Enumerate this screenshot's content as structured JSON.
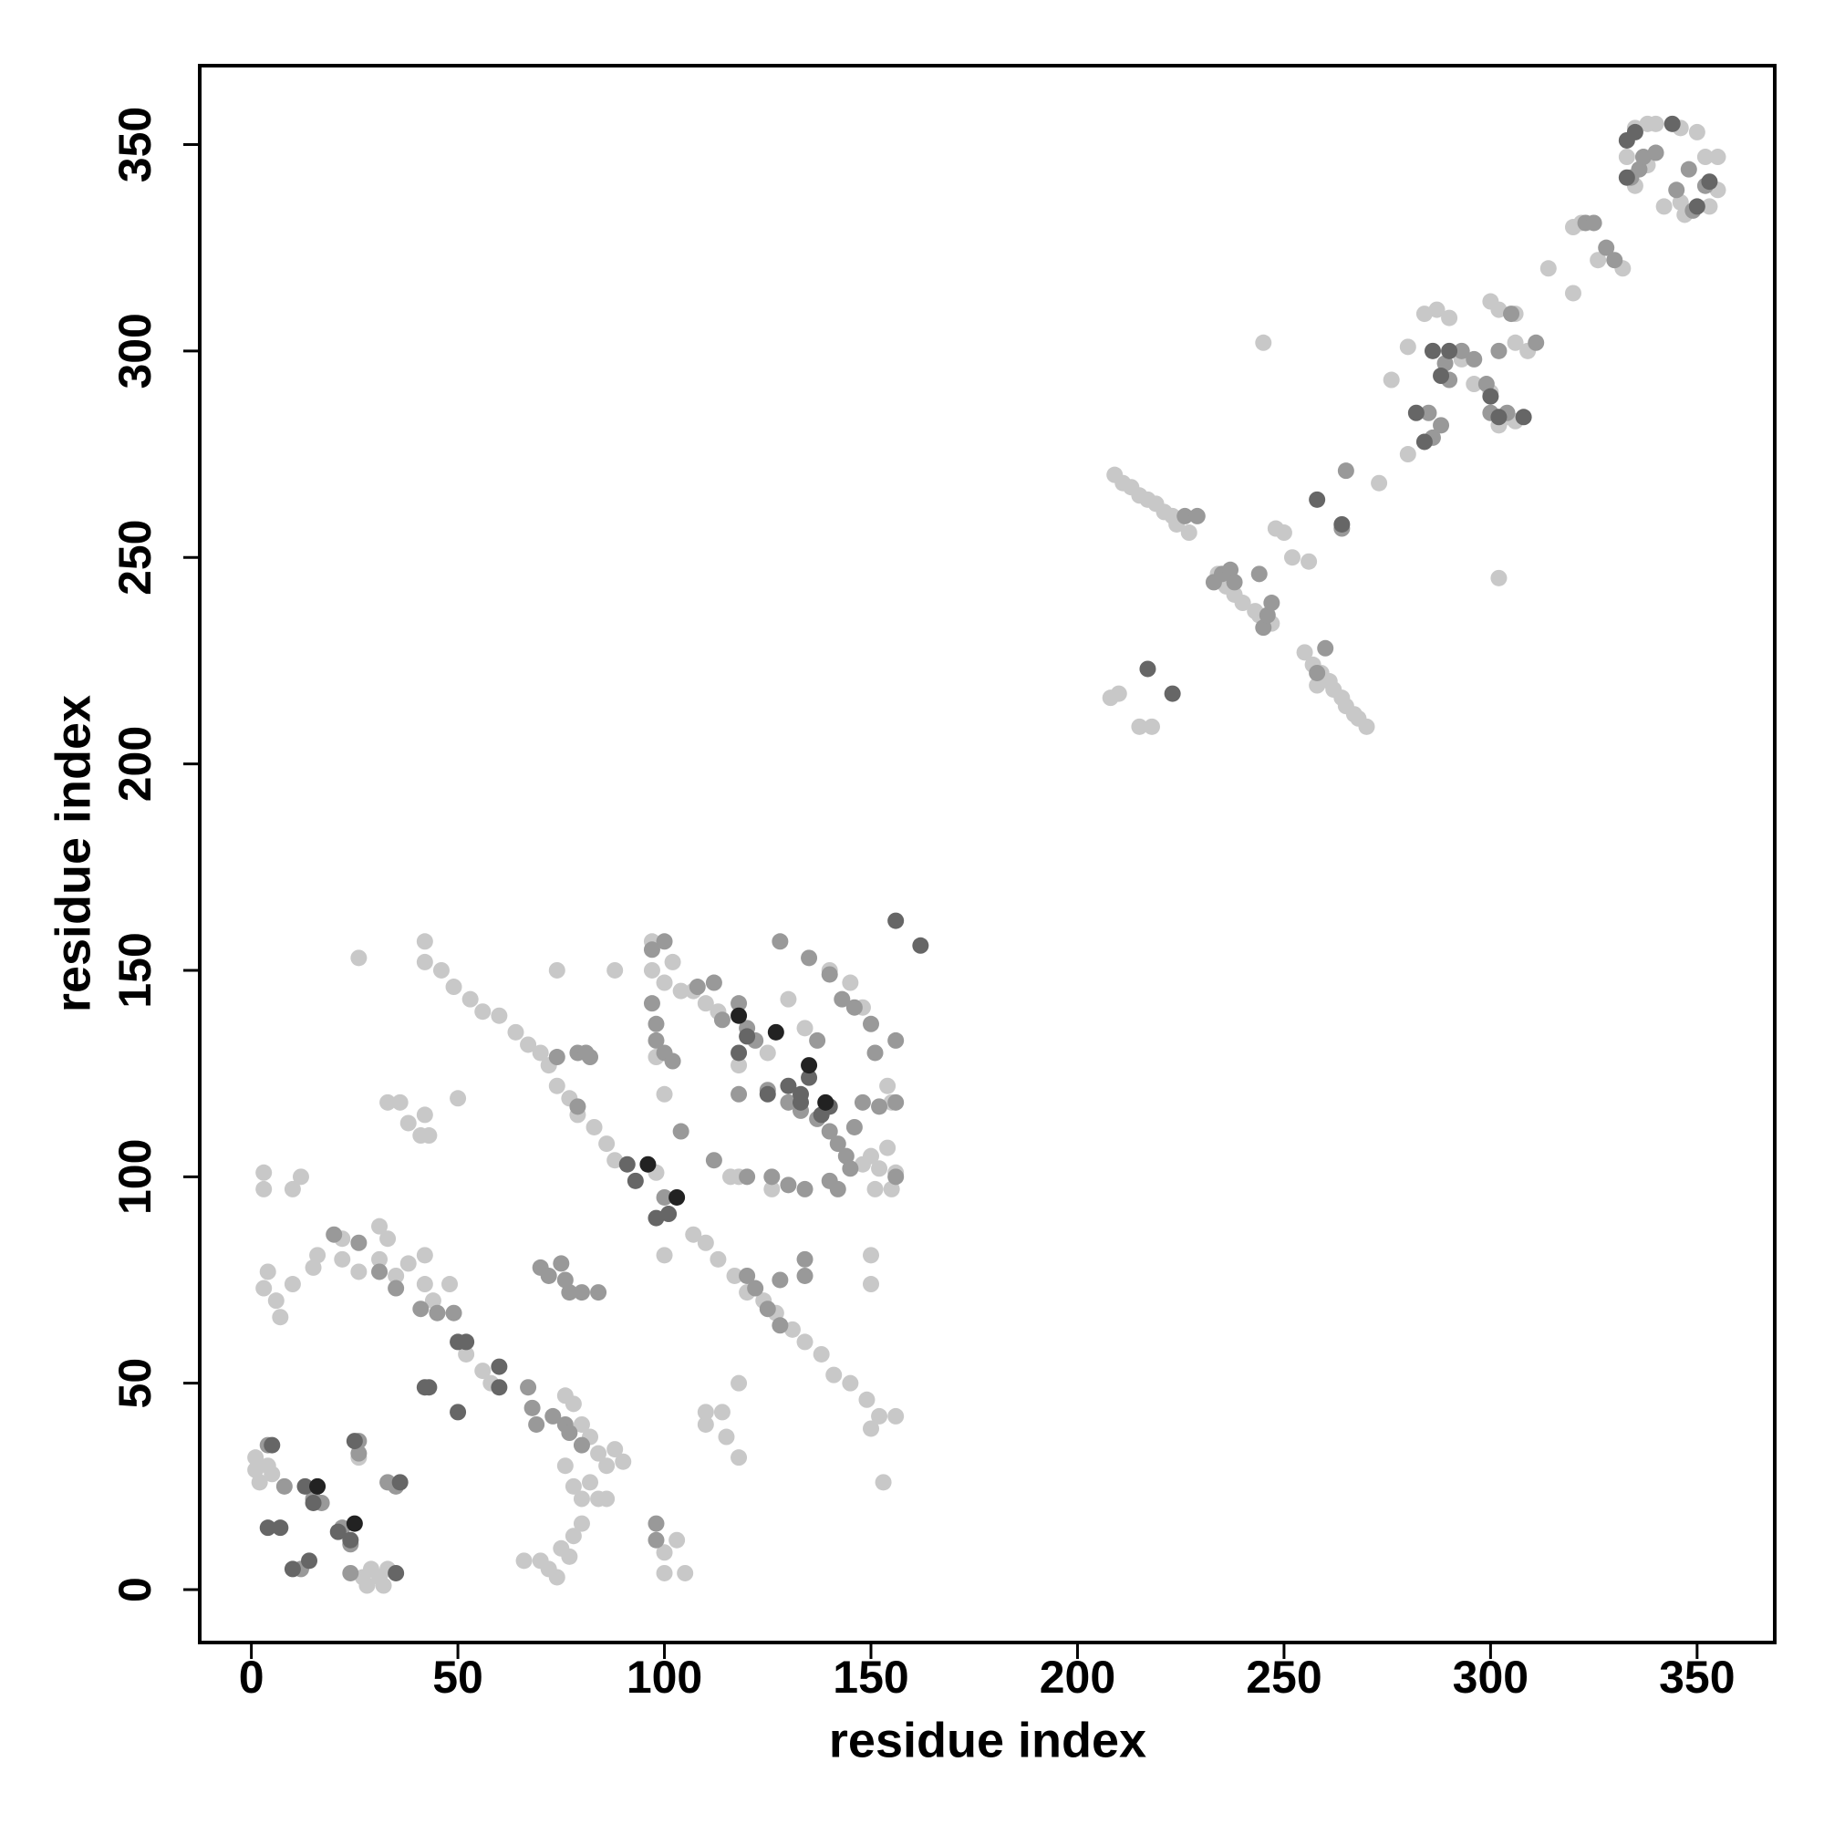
{
  "chart_data": {
    "type": "scatter",
    "xlabel": "residue index",
    "ylabel": "residue index",
    "xlim": [
      -12.5,
      368.8
    ],
    "ylim": [
      -12.8,
      369.1
    ],
    "xticks": [
      0,
      50,
      100,
      150,
      200,
      250,
      300,
      350
    ],
    "yticks": [
      0,
      50,
      100,
      150,
      200,
      250,
      300,
      350
    ],
    "grid": false,
    "series": [
      {
        "color": "#c8c8c8",
        "x": [
          42,
          42,
          46,
          49,
          53,
          56,
          60,
          64,
          67,
          70,
          72,
          74,
          77,
          79,
          83,
          86,
          88,
          107,
          110,
          113,
          117,
          120,
          124,
          127,
          131,
          134,
          138,
          141,
          145,
          149,
          152,
          156,
          3,
          3,
          12,
          10,
          4,
          3,
          6,
          7,
          10,
          15,
          16,
          22,
          22,
          26,
          31,
          33,
          31,
          35,
          38,
          42,
          42,
          44,
          48,
          52,
          56,
          58,
          1,
          1,
          2,
          4,
          5,
          26,
          27,
          29,
          31,
          33,
          28,
          32,
          66,
          70,
          72,
          74,
          75,
          77,
          78,
          76,
          78,
          80,
          82,
          84,
          86,
          88,
          90,
          76,
          78,
          80,
          82,
          84,
          86,
          80,
          100,
          100,
          103,
          105,
          88,
          74,
          26,
          33,
          36,
          38,
          41,
          43,
          42,
          50,
          110,
          110,
          114,
          115,
          118,
          118,
          150,
          150,
          150,
          153,
          97,
          97,
          100,
          102,
          104,
          107,
          110,
          113,
          118,
          125,
          130,
          134,
          140,
          145,
          148,
          150,
          152,
          154,
          156,
          155,
          151,
          148,
          154,
          155,
          98,
          100,
          118,
          126,
          98,
          100,
          116,
          209,
          211,
          213,
          215,
          217,
          219,
          221,
          223,
          224,
          227,
          208,
          210,
          215,
          218,
          255,
          257,
          259,
          261,
          262,
          264,
          265,
          267,
          268,
          270,
          258,
          234,
          236,
          238,
          240,
          244,
          247,
          248,
          250,
          252,
          256,
          243,
          245,
          302,
          273,
          280,
          276,
          280,
          284,
          287,
          290,
          293,
          296,
          300,
          302,
          304,
          306,
          302,
          306,
          300,
          306,
          309,
          314,
          320,
          320,
          322,
          326,
          332,
          333,
          335,
          338,
          340,
          346,
          350,
          352,
          355,
          355,
          353,
          347,
          346,
          342,
          338,
          335
        ],
        "values": [
          157,
          152,
          150,
          146,
          143,
          140,
          139,
          135,
          132,
          130,
          127,
          122,
          119,
          115,
          112,
          108,
          104,
          86,
          84,
          80,
          76,
          72,
          70,
          67,
          63,
          60,
          57,
          52,
          50,
          46,
          42,
          42,
          101,
          97,
          100,
          97,
          77,
          73,
          70,
          66,
          74,
          78,
          81,
          85,
          80,
          77,
          88,
          85,
          80,
          76,
          79,
          81,
          74,
          70,
          74,
          57,
          53,
          50,
          32,
          29,
          26,
          30,
          28,
          32,
          3,
          5,
          3,
          5,
          1,
          1,
          7,
          7,
          5,
          3,
          10,
          8,
          13,
          47,
          45,
          40,
          37,
          33,
          30,
          34,
          31,
          30,
          25,
          22,
          26,
          22,
          22,
          16,
          4,
          9,
          12,
          4,
          150,
          150,
          153,
          118,
          118,
          113,
          110,
          110,
          115,
          119,
          40,
          43,
          43,
          37,
          32,
          50,
          81,
          74,
          39,
          26,
          157,
          150,
          147,
          152,
          145,
          145,
          142,
          140,
          127,
          130,
          143,
          136,
          150,
          147,
          141,
          105,
          102,
          107,
          101,
          97,
          97,
          103,
          122,
          118,
          129,
          120,
          100,
          97,
          101,
          81,
          100,
          270,
          268,
          267,
          265,
          264,
          263,
          261,
          260,
          258,
          256,
          216,
          217,
          209,
          209,
          227,
          224,
          222,
          220,
          218,
          216,
          214,
          212,
          211,
          209,
          219,
          246,
          243,
          241,
          239,
          236,
          234,
          257,
          256,
          250,
          249,
          237,
          302,
          245,
          268,
          275,
          293,
          301,
          309,
          310,
          308,
          298,
          292,
          290,
          282,
          284,
          283,
          310,
          309,
          312,
          302,
          300,
          320,
          314,
          330,
          331,
          322,
          320,
          347,
          354,
          355,
          355,
          354,
          353,
          347,
          347,
          339,
          335,
          333,
          336,
          335,
          345,
          340
        ]
      },
      {
        "color": "#999999",
        "x": [
          74,
          79,
          81,
          82,
          79,
          75,
          77,
          80,
          84,
          70,
          72,
          76,
          20,
          26,
          31,
          35,
          41,
          45,
          49,
          67,
          68,
          69,
          73,
          76,
          77,
          80,
          26,
          26,
          33,
          35,
          4,
          8,
          15,
          17,
          22,
          24,
          24,
          12,
          97,
          98,
          98,
          100,
          102,
          97,
          100,
          108,
          112,
          118,
          114,
          120,
          122,
          118,
          125,
          130,
          133,
          137,
          140,
          142,
          144,
          145,
          142,
          134,
          130,
          126,
          120,
          112,
          104,
          128,
          135,
          137,
          140,
          143,
          146,
          150,
          151,
          156,
          156,
          152,
          148,
          146,
          140,
          156,
          98,
          98,
          128,
          134,
          134,
          128,
          125,
          120,
          122,
          100,
          226,
          229,
          233,
          235,
          237,
          238,
          244,
          245,
          246,
          247,
          260,
          258,
          264,
          265,
          285,
          286,
          288,
          289,
          290,
          293,
          296,
          299,
          300,
          304,
          302,
          305,
          311,
          323,
          325,
          328,
          330,
          334,
          336,
          337,
          340,
          345,
          348,
          352,
          349
        ],
        "values": [
          129,
          130,
          130,
          129,
          117,
          79,
          72,
          72,
          72,
          78,
          76,
          75,
          86,
          84,
          77,
          73,
          68,
          67,
          67,
          49,
          44,
          40,
          42,
          40,
          38,
          35,
          36,
          33,
          26,
          25,
          35,
          25,
          22,
          21,
          15,
          11,
          4,
          5,
          142,
          137,
          133,
          130,
          128,
          155,
          157,
          146,
          147,
          142,
          138,
          136,
          133,
          120,
          121,
          118,
          116,
          114,
          111,
          108,
          105,
          102,
          97,
          97,
          98,
          100,
          100,
          104,
          111,
          157,
          153,
          133,
          149,
          143,
          141,
          137,
          130,
          133,
          118,
          117,
          118,
          112,
          99,
          100,
          16,
          12,
          75,
          80,
          76,
          64,
          68,
          76,
          73,
          95,
          260,
          260,
          244,
          246,
          247,
          244,
          246,
          233,
          236,
          239,
          228,
          222,
          257,
          271,
          285,
          279,
          282,
          297,
          293,
          300,
          298,
          292,
          285,
          285,
          300,
          309,
          302,
          331,
          331,
          325,
          322,
          342,
          344,
          347,
          348,
          339,
          344,
          340,
          334
        ]
      },
      {
        "color": "#666666",
        "x": [
          5,
          4,
          7,
          10,
          13,
          14,
          15,
          21,
          24,
          25,
          35,
          36,
          42,
          43,
          50,
          52,
          50,
          60,
          60,
          91,
          93,
          101,
          98,
          118,
          120,
          125,
          130,
          133,
          135,
          133,
          138,
          140,
          156,
          162,
          217,
          223,
          264,
          258,
          282,
          284,
          286,
          288,
          290,
          302,
          308,
          333,
          333,
          335,
          350,
          353,
          344,
          300
        ],
        "values": [
          35,
          15,
          15,
          5,
          25,
          7,
          21,
          14,
          12,
          36,
          4,
          26,
          49,
          49,
          60,
          60,
          43,
          54,
          49,
          103,
          99,
          91,
          90,
          130,
          134,
          120,
          122,
          120,
          124,
          118,
          115,
          117,
          162,
          156,
          223,
          217,
          258,
          264,
          285,
          278,
          300,
          294,
          300,
          284,
          284,
          351,
          342,
          353,
          335,
          341,
          355,
          289
        ]
      },
      {
        "color": "#222222",
        "x": [
          118,
          127,
          135,
          139,
          16,
          25,
          96,
          103
        ],
        "values": [
          139,
          135,
          127,
          118,
          25,
          16,
          103,
          95
        ]
      }
    ]
  }
}
